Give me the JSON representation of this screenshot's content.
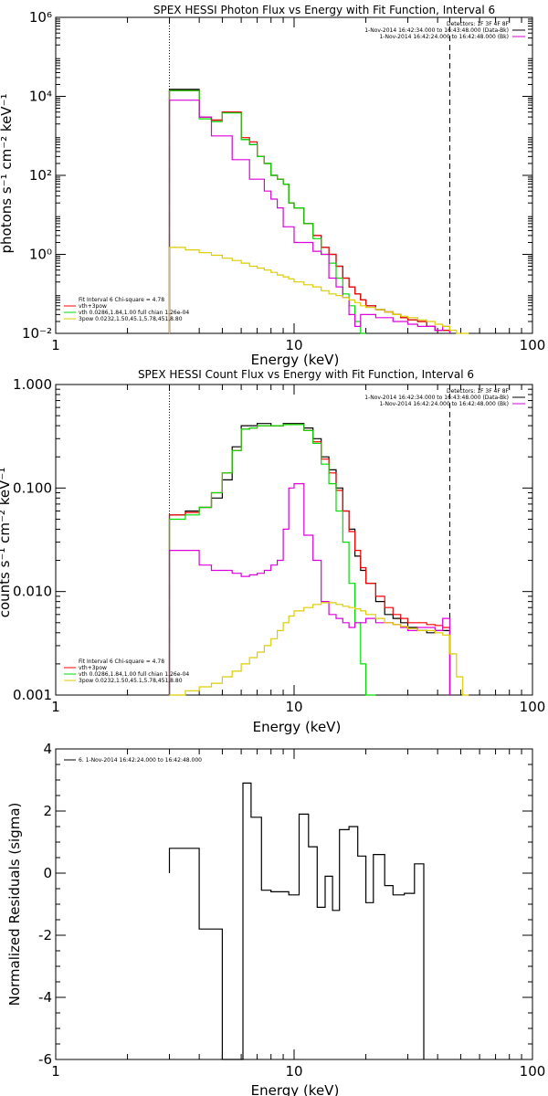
{
  "chart_data": [
    {
      "type": "line",
      "title": "SPEX HESSI Photon Flux vs Energy with Fit Function, Interval 6",
      "xlabel": "Energy (keV)",
      "ylabel": "photons s⁻¹ cm⁻² keV⁻¹",
      "xscale": "log",
      "yscale": "log",
      "xlim": [
        1,
        100
      ],
      "ylim": [
        0.01,
        1000000
      ],
      "x_ticks": [
        "1",
        "10",
        "100"
      ],
      "y_ticks": [
        "10⁻²",
        "10⁰",
        "10²",
        "10⁴",
        "10⁶"
      ],
      "vlines": [
        {
          "x": 3.0,
          "style": "dotted"
        },
        {
          "x": 45.0,
          "style": "dashed"
        }
      ],
      "legend_tr": [
        "Detectors: 1F 3F 4F 8F",
        "1-Nov-2014 16:42:34.000 to 16:43:48.000 (Data-Bk)",
        "1-Nov-2014 16:42:24.000 to 16:42:48.000 (Bk)"
      ],
      "legend_bl": [
        "Fit Interval 6   Chi-square = 4.78",
        "vth+3pow",
        "vth 0.0286,1.84,1.00  full chian 1.26e-04",
        "3pow 0.0232,1.50,45.1,5.78,451,8.80"
      ],
      "edges": [
        3.0,
        3.5,
        4.0,
        4.5,
        5.0,
        5.5,
        6.0,
        6.5,
        7.0,
        7.5,
        8.0,
        8.5,
        9.0,
        9.5,
        10.0,
        11.0,
        12.0,
        13.0,
        14.0,
        15.0,
        16.0,
        17.0,
        18.0,
        19.0,
        20.0,
        22.0,
        24.0,
        26.0,
        28.0,
        30.0,
        33.0,
        36.0,
        39.0,
        42.0,
        45.0,
        48.0,
        51.0,
        54.0
      ],
      "series": [
        {
          "color": "#000000",
          "values": [
            15000,
            15000,
            3000,
            2500,
            4000,
            4000,
            800,
            600,
            300,
            200,
            100,
            80,
            60,
            20,
            15,
            6,
            3,
            1.5,
            1.0,
            0.5,
            0.25,
            0.15,
            0.1,
            0.07,
            0.05,
            0.04,
            0.035,
            0.03,
            0.025,
            0.022,
            0.02,
            0.015,
            0.012,
            0.012,
            null,
            null,
            null
          ]
        },
        {
          "color": "#ff0000",
          "values": [
            14000,
            14000,
            3000,
            2500,
            4000,
            4000,
            900,
            700,
            300,
            200,
            100,
            80,
            60,
            20,
            15,
            6,
            3,
            1.5,
            1.0,
            0.5,
            0.25,
            0.15,
            0.1,
            0.07,
            0.05,
            0.04,
            0.035,
            0.03,
            0.025,
            0.022,
            0.02,
            0.015,
            0.012,
            0.012,
            null,
            null,
            null
          ]
        },
        {
          "color": "#00dd00",
          "values": [
            14000,
            14000,
            2700,
            2300,
            3800,
            3800,
            800,
            600,
            300,
            200,
            100,
            80,
            60,
            20,
            15,
            6,
            2.5,
            1.0,
            0.6,
            0.25,
            0.1,
            0.05,
            0.02,
            0.01,
            null,
            null,
            null,
            null,
            null,
            null,
            null,
            null,
            null,
            null,
            null,
            null,
            null
          ]
        },
        {
          "color": "#dd00dd",
          "values": [
            8000,
            8000,
            3000,
            1000,
            1000,
            250,
            250,
            80,
            80,
            40,
            25,
            15,
            5,
            5,
            2,
            2,
            1.2,
            1.0,
            0.25,
            0.15,
            0.08,
            0.03,
            0.015,
            0.03,
            0.03,
            0.025,
            0.025,
            0.02,
            0.02,
            0.017,
            0.015,
            0.015,
            0.012,
            0.015,
            null,
            null,
            null
          ]
        },
        {
          "color": "#ddcc00",
          "values": [
            1.5,
            1.3,
            1.1,
            0.95,
            0.8,
            0.7,
            0.6,
            0.5,
            0.45,
            0.4,
            0.35,
            0.3,
            0.27,
            0.24,
            0.2,
            0.17,
            0.15,
            0.12,
            0.1,
            0.09,
            0.08,
            0.07,
            0.06,
            0.05,
            0.045,
            0.04,
            0.035,
            0.03,
            0.027,
            0.025,
            0.022,
            0.02,
            0.017,
            0.015,
            0.012,
            0.01,
            0.008
          ]
        }
      ]
    },
    {
      "type": "line",
      "title": "SPEX HESSI Count Flux vs Energy with Fit Function, Interval 6",
      "xlabel": "Energy (keV)",
      "ylabel": "counts s⁻¹ cm⁻² keV⁻¹",
      "xscale": "log",
      "yscale": "log",
      "xlim": [
        1,
        100
      ],
      "ylim": [
        0.001,
        1.0
      ],
      "x_ticks": [
        "1",
        "10",
        "100"
      ],
      "y_ticks": [
        "0.001",
        "0.010",
        "0.100",
        "1.000"
      ],
      "vlines": [
        {
          "x": 3.0,
          "style": "dotted"
        },
        {
          "x": 45.0,
          "style": "dashed"
        }
      ],
      "legend_tr": [
        "Detectors: 1F 3F 4F 8F",
        "1-Nov-2014 16:42:34.000 to 16:43:48.000 (Data-Bk)",
        "1-Nov-2014 16:42:24.000 to 16:42:48.000 (Bk)"
      ],
      "legend_bl": [
        "Fit Interval 6   Chi-square = 4.78",
        "vth+3pow",
        "vth 0.0286,1.84,1.00  full chian 1.26e-04",
        "3pow 0.0232,1.50,45.1,5.78,451,8.80"
      ],
      "edges": [
        3.0,
        3.5,
        4.0,
        4.5,
        5.0,
        5.5,
        6.0,
        6.5,
        7.0,
        7.5,
        8.0,
        8.5,
        9.0,
        9.5,
        10.0,
        11.0,
        12.0,
        13.0,
        14.0,
        15.0,
        16.0,
        17.0,
        18.0,
        19.0,
        20.0,
        22.0,
        24.0,
        26.0,
        28.0,
        30.0,
        33.0,
        36.0,
        39.0,
        42.0,
        45.0,
        48.0,
        51.0,
        54.0
      ],
      "series": [
        {
          "color": "#000000",
          "values": [
            0.055,
            0.06,
            0.065,
            0.08,
            0.12,
            0.25,
            0.4,
            0.4,
            0.42,
            0.42,
            0.4,
            0.4,
            0.42,
            0.42,
            0.42,
            0.38,
            0.3,
            0.2,
            0.15,
            0.1,
            0.06,
            0.04,
            0.022,
            0.016,
            0.012,
            0.008,
            0.006,
            0.0055,
            0.005,
            0.0045,
            0.0042,
            0.004,
            0.0042,
            0.0042,
            null,
            null,
            null
          ]
        },
        {
          "color": "#ff0000",
          "values": [
            0.055,
            0.058,
            0.065,
            0.09,
            0.14,
            0.23,
            0.37,
            0.38,
            0.4,
            0.4,
            0.4,
            0.4,
            0.41,
            0.41,
            0.41,
            0.36,
            0.28,
            0.19,
            0.14,
            0.095,
            0.06,
            0.038,
            0.025,
            0.017,
            0.012,
            0.009,
            0.007,
            0.006,
            0.0055,
            0.005,
            0.005,
            0.0048,
            0.0047,
            0.0045,
            null,
            null,
            null
          ]
        },
        {
          "color": "#00dd00",
          "values": [
            0.05,
            0.055,
            0.065,
            0.09,
            0.14,
            0.23,
            0.37,
            0.38,
            0.4,
            0.4,
            0.4,
            0.4,
            0.41,
            0.41,
            0.41,
            0.36,
            0.27,
            0.17,
            0.11,
            0.06,
            0.03,
            0.012,
            0.005,
            0.002,
            0.001,
            null,
            null,
            null,
            null,
            null,
            null,
            null,
            null,
            null,
            null,
            null,
            null
          ]
        },
        {
          "color": "#dd00dd",
          "values": [
            0.025,
            0.025,
            0.018,
            0.016,
            0.016,
            0.015,
            0.014,
            0.0145,
            0.015,
            0.016,
            0.018,
            0.02,
            0.04,
            0.1,
            0.11,
            0.035,
            0.02,
            0.008,
            0.006,
            0.0055,
            0.005,
            0.0045,
            0.005,
            0.005,
            0.0055,
            0.005,
            0.005,
            0.0048,
            0.0045,
            0.0042,
            0.0045,
            0.0045,
            0.0042,
            0.0055,
            null,
            null,
            null
          ]
        },
        {
          "color": "#ddcc00",
          "values": [
            0.001,
            0.0011,
            0.0012,
            0.0013,
            0.0015,
            0.0017,
            0.002,
            0.0023,
            0.0026,
            0.003,
            0.0035,
            0.0042,
            0.005,
            0.0058,
            0.0065,
            0.007,
            0.0075,
            0.0078,
            0.0078,
            0.0075,
            0.0072,
            0.007,
            0.0068,
            0.0065,
            0.006,
            0.0055,
            0.005,
            0.0048,
            0.0046,
            0.0044,
            0.0042,
            0.0042,
            0.004,
            0.0038,
            0.0025,
            0.0015,
            0.001
          ]
        }
      ]
    },
    {
      "type": "line",
      "title": "",
      "xlabel": "Energy (keV)",
      "ylabel": "Normalized Residuals (sigma)",
      "xscale": "log",
      "yscale": "linear",
      "xlim": [
        1,
        100
      ],
      "ylim": [
        -6,
        4
      ],
      "x_ticks": [
        "1",
        "10",
        "100"
      ],
      "y_ticks": [
        "-6",
        "-4",
        "-2",
        "0",
        "2",
        "4"
      ],
      "legend_tl": [
        "6. 1-Nov-2014 16:42:24.000 to 16:42:48.000"
      ],
      "edges": [
        3.0,
        4.0,
        5.0,
        6.1,
        6.6,
        7.3,
        8.0,
        9.5,
        10.5,
        11.5,
        12.5,
        13.5,
        14.5,
        15.5,
        17.0,
        18.5,
        20.0,
        21.5,
        24.0,
        26.0,
        29.0,
        32.0,
        35.0,
        40.0,
        45.0
      ],
      "series": [
        {
          "color": "#000000",
          "values": [
            0.8,
            -1.8,
            -6.1,
            2.9,
            1.8,
            -0.55,
            -0.6,
            -0.7,
            1.9,
            0.85,
            -1.1,
            -0.1,
            -1.2,
            1.4,
            1.5,
            0.55,
            -0.95,
            0.6,
            -0.4,
            -0.7,
            -0.65,
            0.3,
            null,
            null
          ]
        }
      ]
    }
  ]
}
